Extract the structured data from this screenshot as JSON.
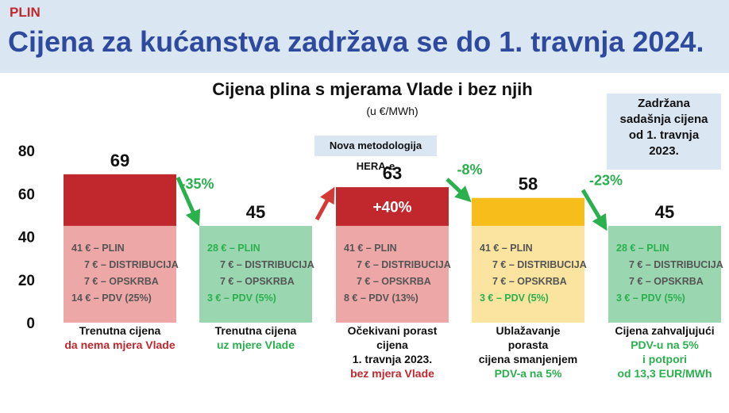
{
  "header": {
    "tag": "PLIN",
    "title": "Cijena za kućanstva zadržava se do 1. travnja 2024."
  },
  "note_box": [
    "Zadržana",
    "sadašnja cijena",
    "od 1. travnja",
    "2023."
  ],
  "hera_note": "Nova metodologija HERA-e",
  "colors": {
    "dark_red": "#c0282d",
    "light_red": "#eea7a7",
    "green": "#9ad6b0",
    "orange": "#f7bd1b",
    "light_yellow": "#fae49f",
    "arrow_green": "#2bb04e",
    "arrow_red": "#d33a35",
    "header_bg": "#dbe6f3",
    "title_blue": "#2e4a9e"
  },
  "chart_data": {
    "type": "bar",
    "title": "Cijena plina s mjerama Vlade i bez njih",
    "subtitle": "(u €/MWh)",
    "ylim": [
      0,
      80
    ],
    "yticks": [
      "0",
      "20",
      "40",
      "60",
      "80"
    ],
    "grid": false,
    "categories": [
      {
        "total": 69,
        "total_label": "69",
        "base": 45,
        "top_color": "#c0282d",
        "base_color": "#eea7a7",
        "bar_text": "",
        "components": [
          "41 € – PLIN",
          "7 € – DISTRIBUCIJA",
          "7 € – OPSKRBA",
          "14 € – PDV (25%)"
        ],
        "highlight_last": false,
        "label_lines": [
          {
            "text": "Trenutna cijena",
            "color": "#111111"
          },
          {
            "text": "da nema mjera Vlade",
            "color": "#c0282d"
          }
        ]
      },
      {
        "total": 45,
        "total_label": "45",
        "base": 45,
        "top_color": "#9ad6b0",
        "base_color": "#9ad6b0",
        "bar_text": "",
        "components": [
          "28 € – PLIN",
          "7 € – DISTRIBUCIJA",
          "7 € – OPSKRBA",
          "3 € – PDV (5%)"
        ],
        "highlight_last": true,
        "label_lines": [
          {
            "text": "Trenutna cijena",
            "color": "#111111"
          },
          {
            "text": "uz mjere Vlade",
            "color": "#2bb04e"
          }
        ]
      },
      {
        "total": 63,
        "total_label": "63",
        "base": 45,
        "top_color": "#c0282d",
        "base_color": "#eea7a7",
        "bar_text": "+40%",
        "components": [
          "41 € – PLIN",
          "7 € – DISTRIBUCIJA",
          "7 € – OPSKRBA",
          "8 € – PDV (13%)"
        ],
        "highlight_last": false,
        "label_lines": [
          {
            "text": "Očekivani porast",
            "color": "#111111"
          },
          {
            "text": "cijena",
            "color": "#111111"
          },
          {
            "text": "1. travnja 2023.",
            "color": "#111111"
          },
          {
            "text": "bez mjera Vlade",
            "color": "#c0282d"
          }
        ]
      },
      {
        "total": 58,
        "total_label": "58",
        "base": 45,
        "top_color": "#f7bd1b",
        "base_color": "#fae49f",
        "bar_text": "",
        "components": [
          "41 € – PLIN",
          "7 € – DISTRIBUCIJA",
          "7 € – OPSKRBA",
          "3 € – PDV (5%)"
        ],
        "highlight_last": true,
        "label_lines": [
          {
            "text": "Ublažavanje",
            "color": "#111111"
          },
          {
            "text": "porasta",
            "color": "#111111"
          },
          {
            "text": "cijena smanjenjem",
            "color": "#111111"
          },
          {
            "text": "PDV-a na 5%",
            "color": "#2bb04e"
          }
        ]
      },
      {
        "total": 45,
        "total_label": "45",
        "base": 45,
        "top_color": "#9ad6b0",
        "base_color": "#9ad6b0",
        "bar_text": "",
        "components": [
          "28 € – PLIN",
          "7 € – DISTRIBUCIJA",
          "7 € – OPSKRBA",
          "3 € – PDV (5%)"
        ],
        "highlight_last": true,
        "label_lines": [
          {
            "text": "Cijena zahvaljujući",
            "color": "#111111"
          },
          {
            "text": "PDV-u na 5%",
            "color": "#2bb04e"
          },
          {
            "text": "i potpori",
            "color": "#2bb04e"
          },
          {
            "text": "od 13,3 EUR/MWh",
            "color": "#2bb04e"
          }
        ]
      }
    ],
    "changes": [
      {
        "label": "-35%",
        "direction": "down"
      },
      {
        "label": "",
        "direction": "up"
      },
      {
        "label": "-8%",
        "direction": "down"
      },
      {
        "label": "-23%",
        "direction": "down"
      }
    ]
  }
}
